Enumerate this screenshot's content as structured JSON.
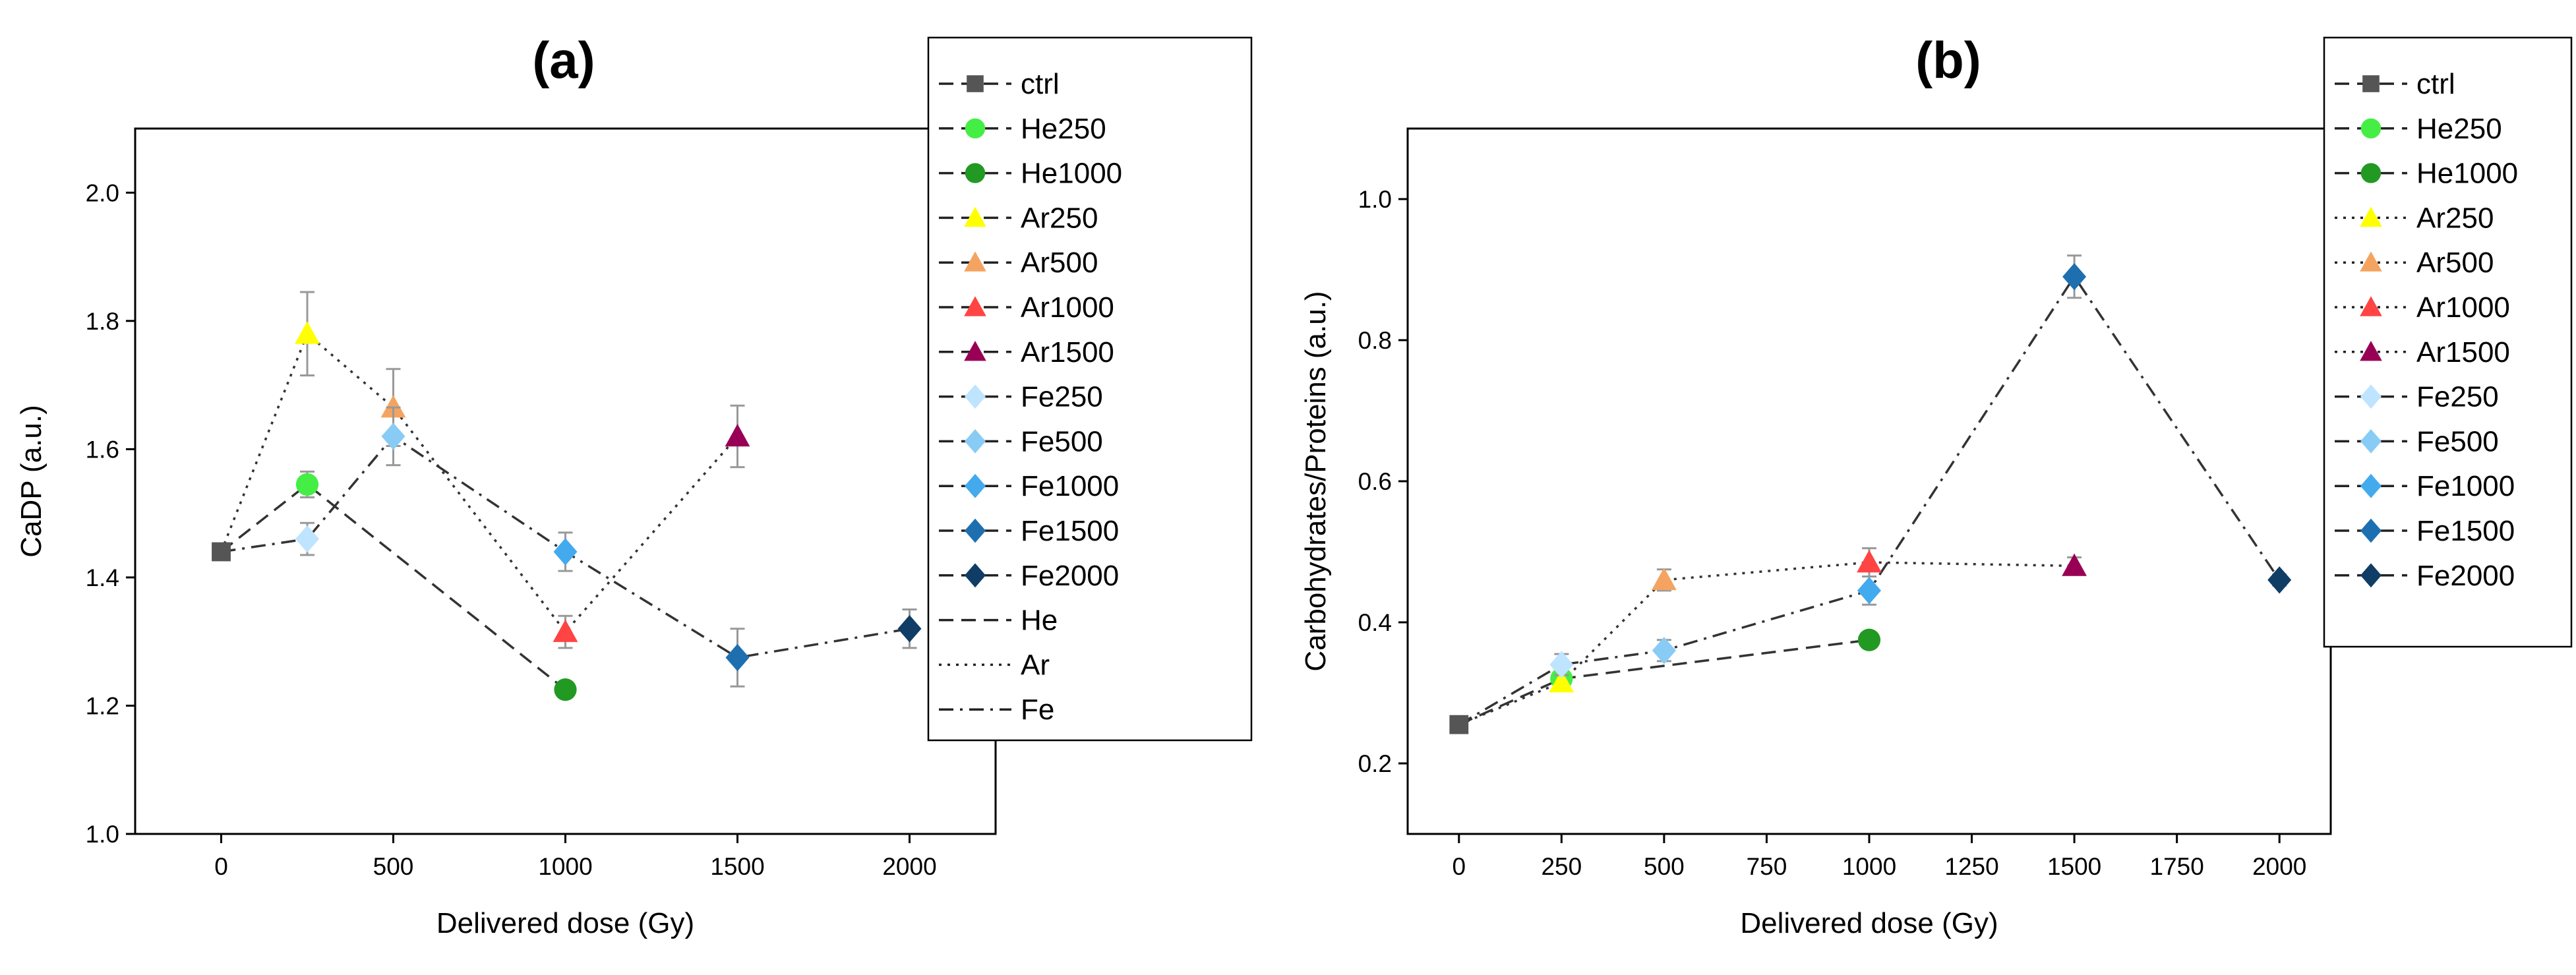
{
  "styles": {
    "ctrl": {
      "marker": "square",
      "color": "#555555"
    },
    "He250": {
      "marker": "circle",
      "color": "#44ee44"
    },
    "He1000": {
      "marker": "circle",
      "color": "#229922"
    },
    "Ar250": {
      "marker": "triangle",
      "color": "#ffff00"
    },
    "Ar500": {
      "marker": "triangle",
      "color": "#f4a460"
    },
    "Ar1000": {
      "marker": "triangle",
      "color": "#ff4444"
    },
    "Ar1500": {
      "marker": "triangle",
      "color": "#990055"
    },
    "Fe250": {
      "marker": "diamond",
      "color": "#bfe4ff"
    },
    "Fe500": {
      "marker": "diamond",
      "color": "#88ccf5"
    },
    "Fe1000": {
      "marker": "diamond",
      "color": "#44aaee"
    },
    "Fe1500": {
      "marker": "diamond",
      "color": "#1e6fb0"
    },
    "Fe2000": {
      "marker": "diamond",
      "color": "#0f3d66"
    }
  },
  "chart_data": [
    {
      "type": "scatter",
      "title": "(a)",
      "xlabel": "Delivered dose (Gy)",
      "ylabel": "CaDP (a.u.)",
      "xlim": [
        -250,
        2250
      ],
      "ylim": [
        1.0,
        2.1
      ],
      "xticks": [
        0,
        500,
        1000,
        1500,
        2000
      ],
      "yticks": [
        1.0,
        1.2,
        1.4,
        1.6,
        1.8,
        2.0
      ],
      "ytick_labels": [
        "1.0",
        "1.2",
        "1.4",
        "1.6",
        "1.8",
        "2.0"
      ],
      "legend_position": "top-right",
      "points": [
        {
          "name": "ctrl",
          "x": 0,
          "y": 1.44,
          "err": 0.005
        },
        {
          "name": "He250",
          "x": 250,
          "y": 1.545,
          "err": 0.02
        },
        {
          "name": "He1000",
          "x": 1000,
          "y": 1.225,
          "err": 0.01
        },
        {
          "name": "Ar250",
          "x": 250,
          "y": 1.78,
          "err": 0.065
        },
        {
          "name": "Ar500",
          "x": 500,
          "y": 1.665,
          "err": 0.06
        },
        {
          "name": "Ar1000",
          "x": 1000,
          "y": 1.315,
          "err": 0.025
        },
        {
          "name": "Ar1500",
          "x": 1500,
          "y": 1.62,
          "err": 0.048
        },
        {
          "name": "Fe250",
          "x": 250,
          "y": 1.46,
          "err": 0.025
        },
        {
          "name": "Fe500",
          "x": 500,
          "y": 1.62,
          "err": 0.045
        },
        {
          "name": "Fe1000",
          "x": 1000,
          "y": 1.44,
          "err": 0.03
        },
        {
          "name": "Fe1500",
          "x": 1500,
          "y": 1.275,
          "err": 0.045
        },
        {
          "name": "Fe2000",
          "x": 2000,
          "y": 1.32,
          "err": 0.03
        }
      ],
      "lines": [
        {
          "name": "He",
          "dash": "dash",
          "points": [
            [
              0,
              1.44
            ],
            [
              250,
              1.545
            ],
            [
              1000,
              1.225
            ]
          ]
        },
        {
          "name": "Ar",
          "dash": "dot",
          "points": [
            [
              0,
              1.44
            ],
            [
              250,
              1.78
            ],
            [
              500,
              1.665
            ],
            [
              1000,
              1.315
            ],
            [
              1500,
              1.62
            ]
          ]
        },
        {
          "name": "Fe",
          "dash": "dashdot",
          "points": [
            [
              0,
              1.44
            ],
            [
              250,
              1.46
            ],
            [
              500,
              1.62
            ],
            [
              1000,
              1.44
            ],
            [
              1500,
              1.275
            ],
            [
              2000,
              1.32
            ]
          ]
        }
      ],
      "legend": [
        {
          "label": "ctrl",
          "style": "ctrl",
          "dash": "dash"
        },
        {
          "label": "He250",
          "style": "He250",
          "dash": "dash"
        },
        {
          "label": "He1000",
          "style": "He1000",
          "dash": "dash"
        },
        {
          "label": "Ar250",
          "style": "Ar250",
          "dash": "dash"
        },
        {
          "label": "Ar500",
          "style": "Ar500",
          "dash": "dash"
        },
        {
          "label": "Ar1000",
          "style": "Ar1000",
          "dash": "dash"
        },
        {
          "label": "Ar1500",
          "style": "Ar1500",
          "dash": "dash"
        },
        {
          "label": "Fe250",
          "style": "Fe250",
          "dash": "dash"
        },
        {
          "label": "Fe500",
          "style": "Fe500",
          "dash": "dash"
        },
        {
          "label": "Fe1000",
          "style": "Fe1000",
          "dash": "dash"
        },
        {
          "label": "Fe1500",
          "style": "Fe1500",
          "dash": "dash"
        },
        {
          "label": "Fe2000",
          "style": "Fe2000",
          "dash": "dash"
        },
        {
          "label": "He",
          "style": null,
          "dash": "dash"
        },
        {
          "label": "Ar",
          "style": null,
          "dash": "dot"
        },
        {
          "label": "Fe",
          "style": null,
          "dash": "dashdot"
        }
      ]
    },
    {
      "type": "scatter",
      "title": "(b)",
      "xlabel": "Delivered dose (Gy)",
      "ylabel": "Carbohydrates/Proteins (a.u.)",
      "xlim": [
        -125,
        2125
      ],
      "ylim": [
        0.1,
        1.1
      ],
      "xticks": [
        0,
        250,
        500,
        750,
        1000,
        1250,
        1500,
        1750,
        2000
      ],
      "yticks": [
        0.2,
        0.4,
        0.6,
        0.8,
        1.0
      ],
      "ytick_labels": [
        "0.2",
        "0.4",
        "0.6",
        "0.8",
        "1.0"
      ],
      "legend_position": "top-right",
      "points": [
        {
          "name": "ctrl",
          "x": 0,
          "y": 0.255,
          "err": 0.005
        },
        {
          "name": "He250",
          "x": 250,
          "y": 0.32,
          "err": 0.01
        },
        {
          "name": "He1000",
          "x": 1000,
          "y": 0.375,
          "err": 0.008
        },
        {
          "name": "Ar250",
          "x": 250,
          "y": 0.315,
          "err": 0.01
        },
        {
          "name": "Ar500",
          "x": 500,
          "y": 0.46,
          "err": 0.015
        },
        {
          "name": "Ar1000",
          "x": 1000,
          "y": 0.485,
          "err": 0.02
        },
        {
          "name": "Ar1500",
          "x": 1500,
          "y": 0.48,
          "err": 0.012
        },
        {
          "name": "Fe250",
          "x": 250,
          "y": 0.34,
          "err": 0.015
        },
        {
          "name": "Fe500",
          "x": 500,
          "y": 0.36,
          "err": 0.015
        },
        {
          "name": "Fe1000",
          "x": 1000,
          "y": 0.445,
          "err": 0.02
        },
        {
          "name": "Fe1500",
          "x": 1500,
          "y": 0.89,
          "err": 0.03
        },
        {
          "name": "Fe2000",
          "x": 2000,
          "y": 0.46,
          "err": 0.008
        }
      ],
      "lines": [
        {
          "name": "He",
          "dash": "dash",
          "points": [
            [
              0,
              0.255
            ],
            [
              250,
              0.32
            ],
            [
              1000,
              0.375
            ]
          ]
        },
        {
          "name": "Ar",
          "dash": "dot",
          "points": [
            [
              0,
              0.255
            ],
            [
              250,
              0.315
            ],
            [
              500,
              0.46
            ],
            [
              1000,
              0.485
            ],
            [
              1500,
              0.48
            ]
          ]
        },
        {
          "name": "Fe",
          "dash": "dashdot",
          "points": [
            [
              0,
              0.255
            ],
            [
              250,
              0.34
            ],
            [
              500,
              0.36
            ],
            [
              1000,
              0.445
            ],
            [
              1500,
              0.89
            ],
            [
              2000,
              0.46
            ]
          ]
        }
      ],
      "legend": [
        {
          "label": "ctrl",
          "style": "ctrl",
          "dash": "dash"
        },
        {
          "label": "He250",
          "style": "He250",
          "dash": "dash"
        },
        {
          "label": "He1000",
          "style": "He1000",
          "dash": "dash"
        },
        {
          "label": "Ar250",
          "style": "Ar250",
          "dash": "dot"
        },
        {
          "label": "Ar500",
          "style": "Ar500",
          "dash": "dot"
        },
        {
          "label": "Ar1000",
          "style": "Ar1000",
          "dash": "dot"
        },
        {
          "label": "Ar1500",
          "style": "Ar1500",
          "dash": "dot"
        },
        {
          "label": "Fe250",
          "style": "Fe250",
          "dash": "dash"
        },
        {
          "label": "Fe500",
          "style": "Fe500",
          "dash": "dash"
        },
        {
          "label": "Fe1000",
          "style": "Fe1000",
          "dash": "dash"
        },
        {
          "label": "Fe1500",
          "style": "Fe1500",
          "dash": "dash"
        },
        {
          "label": "Fe2000",
          "style": "Fe2000",
          "dash": "dash"
        }
      ]
    }
  ]
}
